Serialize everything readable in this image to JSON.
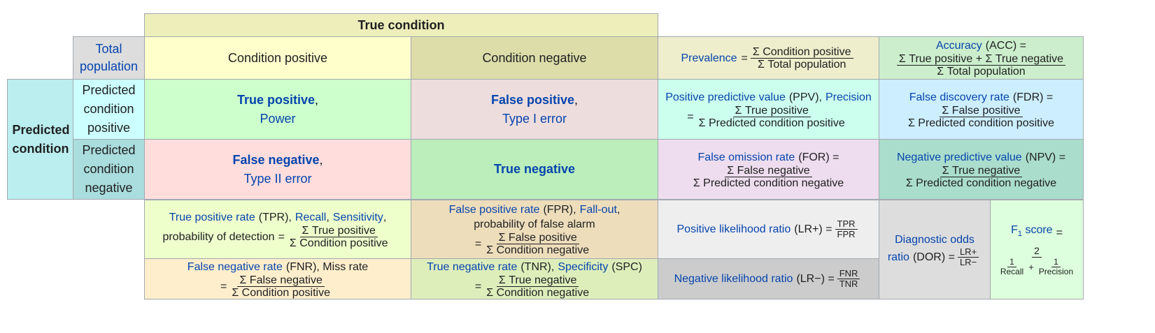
{
  "true_condition": "True condition",
  "total_population": "Total population",
  "condition_positive": "Condition positive",
  "condition_negative": "Condition negative",
  "predicted_condition": "Predicted condition",
  "predicted_condition_positive": "Predicted condition positive",
  "predicted_condition_negative": "Predicted condition negative",
  "tp": {
    "name": "True positive",
    "comma": ",",
    "alias": "Power"
  },
  "fp": {
    "name": "False positive",
    "comma": ",",
    "alias": "Type I error"
  },
  "fn": {
    "name": "False negative",
    "comma": ",",
    "alias": "Type II error"
  },
  "tn": {
    "name": "True negative"
  },
  "prevalence": {
    "label": "Prevalence",
    "eq": "=",
    "num": "Σ Condition positive",
    "den": "Σ Total population"
  },
  "accuracy": {
    "label": "Accuracy",
    "abbr": "(ACC) =",
    "num": "Σ True positive + Σ True negative",
    "den": "Σ Total population"
  },
  "ppv": {
    "label": "Positive predictive value",
    "abbr": "(PPV),",
    "alt": "Precision",
    "eq": "=",
    "num": "Σ True positive",
    "den": "Σ Predicted condition positive"
  },
  "fdr": {
    "label": "False discovery rate",
    "abbr": "(FDR) =",
    "num": "Σ False positive",
    "den": "Σ Predicted condition positive"
  },
  "for": {
    "label": "False omission rate",
    "abbr": "(FOR) =",
    "num": "Σ False negative",
    "den": "Σ Predicted condition negative"
  },
  "npv": {
    "label": "Negative predictive value",
    "abbr": "(NPV) =",
    "num": "Σ True negative",
    "den": "Σ Predicted condition negative"
  },
  "tpr": {
    "label": "True positive rate",
    "abbr": "(TPR),",
    "alt1": "Recall",
    "sep": ",",
    "alt2": "Sensitivity",
    "end": ",",
    "line2": "probability of detection",
    "eq": "=",
    "num": "Σ True positive",
    "den": "Σ Condition positive"
  },
  "fpr": {
    "label": "False positive rate",
    "abbr": "(FPR),",
    "alt": "Fall-out",
    "end": ",",
    "line2": "probability of false alarm",
    "eq": "=",
    "num": "Σ False positive",
    "den": "Σ Condition negative"
  },
  "fnr": {
    "label": "False negative rate",
    "abbr": "(FNR), Miss rate",
    "eq": "=",
    "num": "Σ False negative",
    "den": "Σ Condition positive"
  },
  "tnr": {
    "label": "True negative rate",
    "abbr": "(TNR),",
    "alt": "Specificity",
    "abbr2": "(SPC)",
    "eq": "=",
    "num": "Σ True negative",
    "den": "Σ Condition negative"
  },
  "lrp": {
    "label": "Positive likelihood ratio",
    "abbr": "(LR+) =",
    "num": "TPR",
    "den": "FPR"
  },
  "lrn": {
    "label": "Negative likelihood ratio",
    "abbr": "(LR−) =",
    "num": "FNR",
    "den": "TNR"
  },
  "dor": {
    "label1": "Diagnostic odds",
    "label2": "ratio",
    "abbr": "(DOR) =",
    "num": "LR+",
    "den": "LR−"
  },
  "f1": {
    "label": "F",
    "sub": "1",
    "label_rest": "score",
    "eq": "=",
    "num": "2",
    "d1_num": "1",
    "d1_den": "Recall",
    "plus": "+",
    "d2_num": "1",
    "d2_den": "Precision"
  },
  "colors": {
    "header_yellow": "#eeeebb",
    "cond_pos": "#ffffcc",
    "cond_neg": "#ddddaa",
    "pred_cond": "#bbeeee",
    "total_pop": "#dddddd",
    "pred_pos": "#ccffff",
    "pred_neg": "#aadddd",
    "tp": "#ccffcc",
    "fp": "#eedddd",
    "fn": "#ffdddd",
    "tn": "#bbeebb",
    "prev": "#eeeecc",
    "acc": "#cceecc",
    "ppv": "#ccffee",
    "fdr": "#cceeff",
    "for": "#eeddee",
    "npv": "#aaddcc",
    "tpr": "#eeffcc",
    "fpr": "#eeddbb",
    "fnr": "#ffeecc",
    "tnr": "#ddeebb",
    "lrp": "#eeeeee",
    "lrn": "#cccccc",
    "dor": "#dddddd",
    "f1": "#ddffdd"
  }
}
